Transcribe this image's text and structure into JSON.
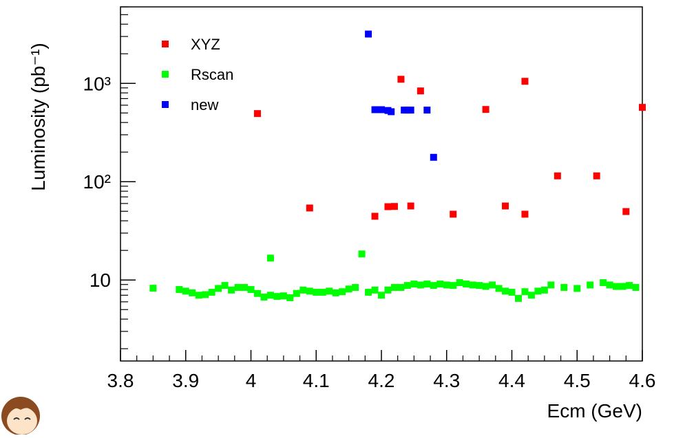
{
  "chart_data": {
    "type": "scatter",
    "x_label": "Ecm (GeV)",
    "y_label": "Luminosity (pb⁻¹)",
    "xlim": [
      3.8,
      4.6
    ],
    "xticks": [
      3.8,
      3.9,
      {
        "value": 4,
        "label": "4"
      },
      4.1,
      4.2,
      4.3,
      4.4,
      4.5,
      4.6
    ],
    "ylim": [
      1.5,
      6000
    ],
    "yticks": [
      10,
      {
        "value": 100,
        "label": "10²"
      },
      {
        "value": 1000,
        "label": "10³"
      }
    ],
    "log_y": true,
    "legend": "upper left",
    "series": [
      {
        "name": "XYZ",
        "color": "#ff0000",
        "x": [
          4.01,
          4.09,
          4.19,
          4.21,
          4.22,
          4.23,
          4.245,
          4.26,
          4.31,
          4.36,
          4.39,
          4.42,
          4.42,
          4.47,
          4.53,
          4.575,
          4.6
        ],
        "values": [
          493,
          54,
          44.5,
          55.7,
          56,
          1101,
          56.6,
          838,
          46.7,
          543,
          56.6,
          46.7,
          1050,
          114.6,
          114.6,
          49.7,
          570
        ]
      },
      {
        "name": "Rscan",
        "color": "#00ff00",
        "x": [
          3.85,
          3.89,
          3.9,
          3.91,
          3.92,
          3.93,
          3.94,
          3.95,
          3.96,
          3.97,
          3.98,
          3.99,
          4.0,
          4.01,
          4.02,
          4.03,
          4.03,
          4.04,
          4.05,
          4.06,
          4.07,
          4.08,
          4.09,
          4.1,
          4.11,
          4.12,
          4.13,
          4.14,
          4.15,
          4.16,
          4.17,
          4.18,
          4.19,
          4.2,
          4.21,
          4.22,
          4.23,
          4.24,
          4.25,
          4.26,
          4.27,
          4.28,
          4.29,
          4.3,
          4.31,
          4.32,
          4.33,
          4.34,
          4.35,
          4.36,
          4.37,
          4.38,
          4.39,
          4.4,
          4.41,
          4.42,
          4.43,
          4.44,
          4.45,
          4.46,
          4.48,
          4.5,
          4.52,
          4.54,
          4.55,
          4.56,
          4.57,
          4.58,
          4.59
        ],
        "values": [
          8.25,
          8.0,
          7.7,
          7.4,
          7.0,
          7.1,
          7.5,
          8.2,
          8.8,
          7.9,
          8.4,
          8.4,
          8.0,
          7.3,
          6.7,
          7.0,
          16.7,
          6.8,
          6.9,
          6.6,
          7.3,
          7.9,
          7.7,
          7.5,
          7.5,
          7.7,
          7.4,
          7.6,
          8.1,
          8.4,
          18.4,
          7.5,
          7.9,
          7.0,
          7.9,
          8.4,
          8.4,
          8.8,
          9.1,
          8.9,
          9.1,
          8.8,
          9.1,
          8.9,
          8.8,
          9.4,
          9.1,
          8.9,
          8.8,
          8.6,
          8.9,
          8.2,
          7.7,
          7.5,
          6.5,
          7.6,
          7.0,
          7.7,
          7.9,
          8.9,
          8.4,
          8.2,
          8.9,
          9.4,
          8.9,
          8.6,
          8.6,
          8.8,
          8.4
        ]
      },
      {
        "name": "new",
        "color": "#0000ff",
        "x": [
          4.18,
          4.19,
          4.195,
          4.2,
          4.21,
          4.215,
          4.235,
          4.24,
          4.245,
          4.27,
          4.28
        ],
        "values": [
          3175,
          540,
          540,
          540,
          530,
          515,
          535,
          535,
          535,
          535,
          177
        ]
      }
    ]
  }
}
